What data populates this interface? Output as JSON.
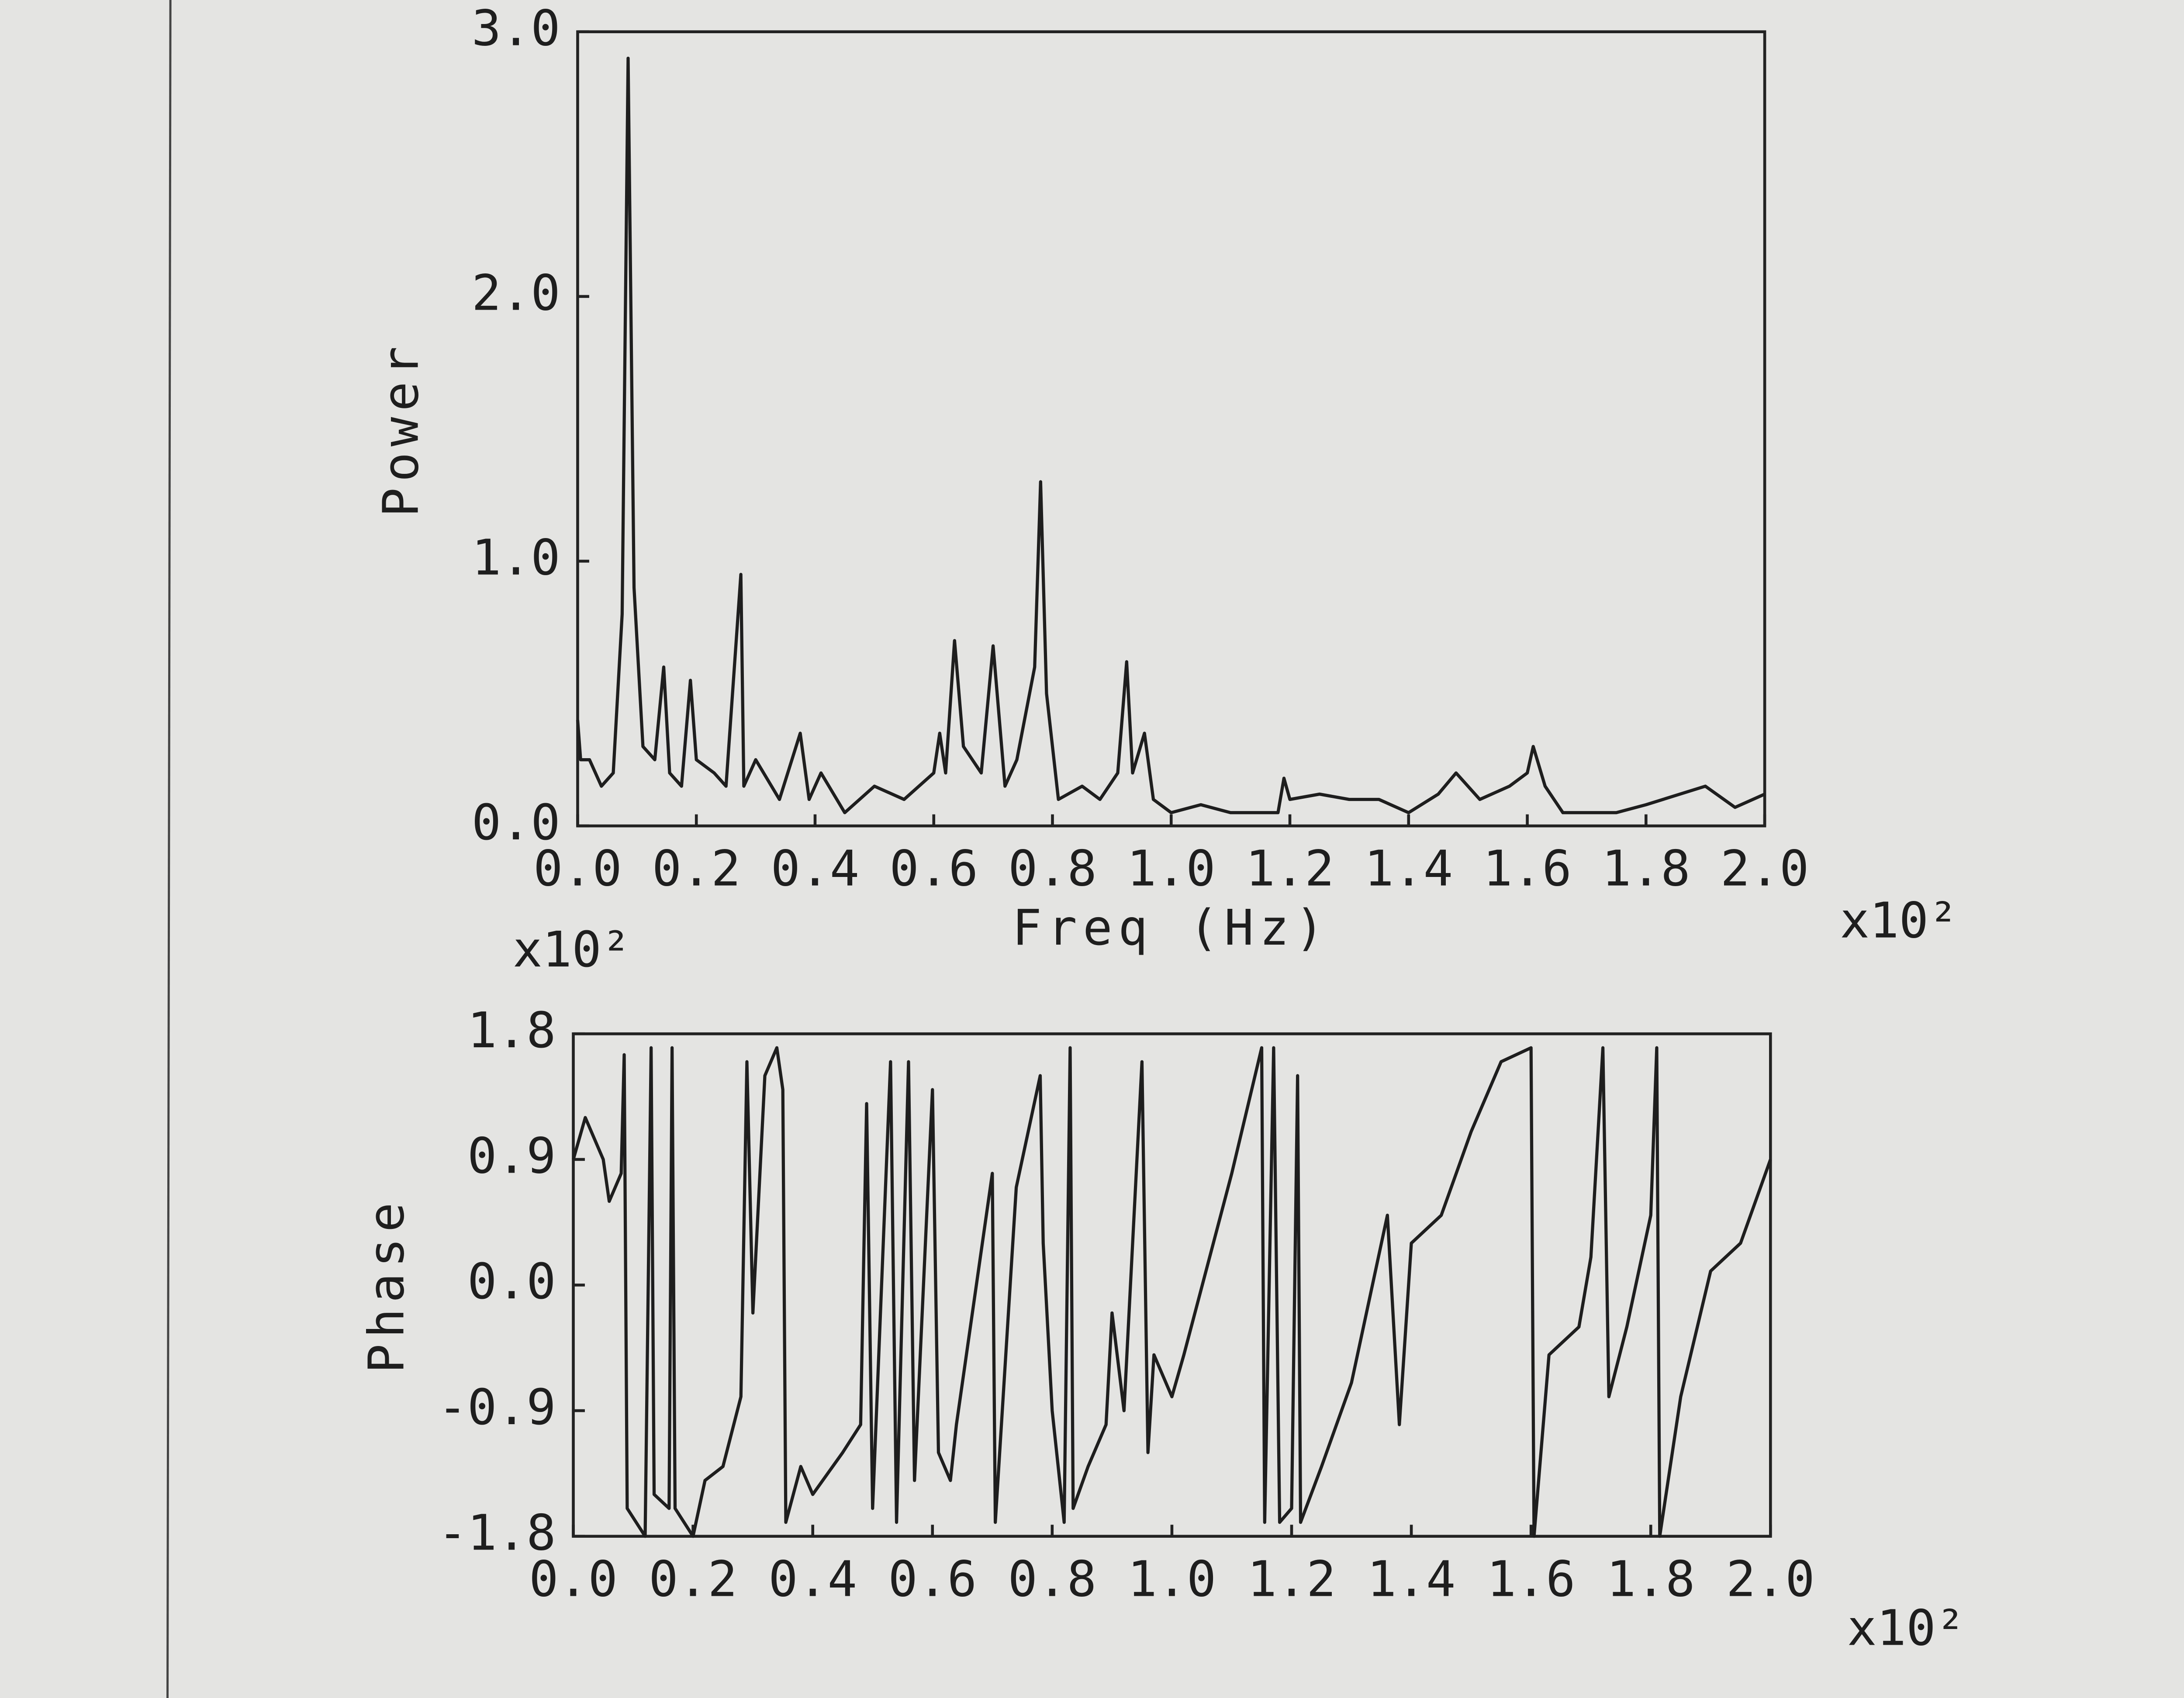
{
  "chart_data": [
    {
      "type": "line",
      "ylabel": "Power",
      "xlabel": "Freq (Hz)",
      "annotations": [
        "x10²",
        "x10²"
      ],
      "xlim": [
        0,
        2.0
      ],
      "xticks": [
        {
          "value": 0,
          "label": "0.0"
        },
        {
          "value": 0.2,
          "label": "0.2"
        },
        {
          "value": 0.4,
          "label": "0.4"
        },
        {
          "value": 0.6,
          "label": "0.6"
        },
        {
          "value": 0.8,
          "label": "0.8"
        },
        {
          "value": 1.0,
          "label": "1.0"
        },
        {
          "value": 1.2,
          "label": "1.2"
        },
        {
          "value": 1.4,
          "label": "1.4"
        },
        {
          "value": 1.6,
          "label": "1.6"
        },
        {
          "value": 1.8,
          "label": "1.8"
        },
        {
          "value": 2.0,
          "label": "2.0"
        }
      ],
      "ylim": [
        0,
        3.0
      ],
      "yticks": [
        {
          "value": 0,
          "label": "0.0"
        },
        {
          "value": 1.0,
          "label": "1.0"
        },
        {
          "value": 2.0,
          "label": "2.0"
        },
        {
          "value": 3.0,
          "label": "3.0"
        }
      ],
      "x": [
        0,
        0.005,
        0.02,
        0.04,
        0.06,
        0.075,
        0.085,
        0.095,
        0.11,
        0.13,
        0.145,
        0.155,
        0.175,
        0.19,
        0.2,
        0.23,
        0.25,
        0.275,
        0.28,
        0.3,
        0.34,
        0.375,
        0.39,
        0.41,
        0.45,
        0.5,
        0.55,
        0.6,
        0.61,
        0.62,
        0.635,
        0.65,
        0.68,
        0.7,
        0.72,
        0.74,
        0.77,
        0.78,
        0.79,
        0.81,
        0.85,
        0.88,
        0.91,
        0.925,
        0.935,
        0.955,
        0.97,
        1.0,
        1.05,
        1.1,
        1.18,
        1.19,
        1.2,
        1.25,
        1.3,
        1.35,
        1.4,
        1.45,
        1.48,
        1.52,
        1.57,
        1.6,
        1.61,
        1.63,
        1.66,
        1.7,
        1.75,
        1.8,
        1.9,
        1.95,
        2.0
      ],
      "series": [
        {
          "color": "#1e1e1e",
          "values": [
            0.4,
            0.25,
            0.25,
            0.15,
            0.2,
            0.8,
            2.9,
            0.9,
            0.3,
            0.25,
            0.6,
            0.2,
            0.15,
            0.55,
            0.25,
            0.2,
            0.15,
            0.95,
            0.15,
            0.25,
            0.1,
            0.35,
            0.1,
            0.2,
            0.05,
            0.15,
            0.1,
            0.2,
            0.35,
            0.2,
            0.7,
            0.3,
            0.2,
            0.68,
            0.15,
            0.25,
            0.6,
            1.3,
            0.5,
            0.1,
            0.15,
            0.1,
            0.2,
            0.62,
            0.2,
            0.35,
            0.1,
            0.05,
            0.08,
            0.05,
            0.05,
            0.18,
            0.1,
            0.12,
            0.1,
            0.1,
            0.05,
            0.12,
            0.2,
            0.1,
            0.15,
            0.2,
            0.3,
            0.15,
            0.05,
            0.05,
            0.05,
            0.08,
            0.15,
            0.07,
            0.12
          ]
        }
      ]
    },
    {
      "type": "line",
      "ylabel": "Phase",
      "annotations": [
        "x10²"
      ],
      "xlim": [
        0,
        2.0
      ],
      "xticks": [
        {
          "value": 0,
          "label": "0.0"
        },
        {
          "value": 0.2,
          "label": "0.2"
        },
        {
          "value": 0.4,
          "label": "0.4"
        },
        {
          "value": 0.6,
          "label": "0.6"
        },
        {
          "value": 0.8,
          "label": "0.8"
        },
        {
          "value": 1.0,
          "label": "1.0"
        },
        {
          "value": 1.2,
          "label": "1.2"
        },
        {
          "value": 1.4,
          "label": "1.4"
        },
        {
          "value": 1.6,
          "label": "1.6"
        },
        {
          "value": 1.8,
          "label": "1.8"
        },
        {
          "value": 2.0,
          "label": "2.0"
        }
      ],
      "ylim": [
        -1.8,
        1.8
      ],
      "yticks": [
        -1.8,
        -0.9,
        {
          "value": 0,
          "label": "0.0"
        },
        0.9,
        1.8
      ],
      "x": [
        0,
        0.02,
        0.05,
        0.06,
        0.08,
        0.085,
        0.09,
        0.12,
        0.13,
        0.135,
        0.16,
        0.165,
        0.17,
        0.2,
        0.22,
        0.25,
        0.28,
        0.29,
        0.3,
        0.32,
        0.34,
        0.35,
        0.355,
        0.38,
        0.4,
        0.45,
        0.48,
        0.49,
        0.5,
        0.53,
        0.54,
        0.56,
        0.57,
        0.6,
        0.61,
        0.63,
        0.64,
        0.7,
        0.705,
        0.74,
        0.78,
        0.785,
        0.8,
        0.82,
        0.83,
        0.835,
        0.86,
        0.89,
        0.9,
        0.92,
        0.95,
        0.96,
        0.97,
        1.0,
        1.02,
        1.1,
        1.15,
        1.155,
        1.17,
        1.18,
        1.2,
        1.21,
        1.215,
        1.25,
        1.3,
        1.36,
        1.38,
        1.4,
        1.45,
        1.5,
        1.55,
        1.6,
        1.605,
        1.63,
        1.68,
        1.7,
        1.72,
        1.73,
        1.76,
        1.8,
        1.81,
        1.815,
        1.85,
        1.9,
        1.95,
        2.0
      ],
      "series": [
        {
          "color": "#1e1e1e",
          "values": [
            0.9,
            1.2,
            0.9,
            0.6,
            0.8,
            1.65,
            -1.6,
            -1.8,
            1.7,
            -1.5,
            -1.6,
            1.7,
            -1.6,
            -1.8,
            -1.4,
            -1.3,
            -0.8,
            1.6,
            -0.2,
            1.5,
            1.7,
            1.4,
            -1.7,
            -1.3,
            -1.5,
            -1.2,
            -1.0,
            1.3,
            -1.6,
            1.6,
            -1.7,
            1.6,
            -1.4,
            1.4,
            -1.2,
            -1.4,
            -1.0,
            0.8,
            -1.7,
            0.7,
            1.5,
            0.3,
            -0.9,
            -1.7,
            1.7,
            -1.6,
            -1.3,
            -1.0,
            -0.2,
            -0.9,
            1.6,
            -1.2,
            -0.5,
            -0.8,
            -0.5,
            0.8,
            1.7,
            -1.7,
            1.7,
            -1.7,
            -1.6,
            1.5,
            -1.7,
            -1.3,
            -0.7,
            0.5,
            -1.0,
            0.3,
            0.5,
            1.1,
            1.6,
            1.7,
            -1.8,
            -0.5,
            -0.3,
            0.2,
            1.7,
            -0.8,
            -0.3,
            0.5,
            1.7,
            -1.8,
            -0.8,
            0.1,
            0.3,
            0.9
          ]
        }
      ]
    }
  ]
}
